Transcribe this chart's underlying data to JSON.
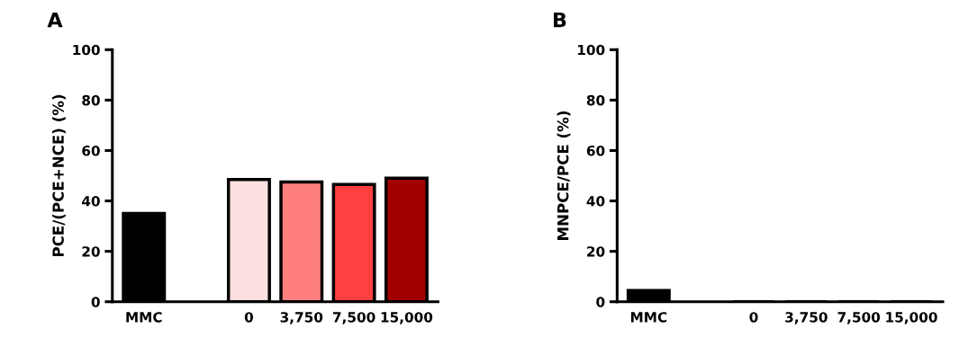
{
  "chart_data": [
    {
      "type": "bar",
      "title": "A",
      "ylabel": "PCE/(PCE+NCE) (%)",
      "categories": [
        "MMC",
        null,
        "0",
        "3,750",
        "7,500",
        "15,000"
      ],
      "values": [
        35,
        null,
        48.5,
        47.5,
        46.5,
        49
      ],
      "colors": [
        "#000000",
        null,
        "#fde0e0",
        "#ff7f7f",
        "#ff4040",
        "#a00000"
      ],
      "ylim": [
        0,
        100
      ],
      "yticks": [
        0,
        20,
        40,
        60,
        80,
        100
      ],
      "grid": false,
      "legend": false
    },
    {
      "type": "bar",
      "title": "B",
      "ylabel": "MNPCE/PCE (%)",
      "categories": [
        "MMC",
        null,
        "0",
        "3,750",
        "7,500",
        "15,000"
      ],
      "values": [
        4.5,
        null,
        0,
        0,
        0,
        0
      ],
      "colors": [
        "#000000",
        null,
        "#fde0e0",
        "#ff7f7f",
        "#ff4040",
        "#a00000"
      ],
      "ylim": [
        0,
        100
      ],
      "yticks": [
        0,
        20,
        40,
        60,
        80,
        100
      ],
      "grid": false,
      "legend": false
    }
  ]
}
